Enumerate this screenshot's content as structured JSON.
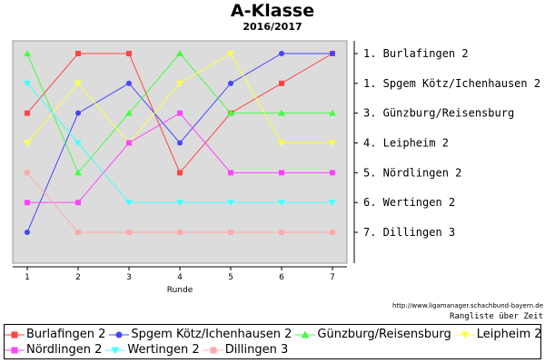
{
  "chart_data": {
    "type": "line",
    "title": "A-Klasse",
    "subtitle": "2016/2017",
    "xlabel": "Runde",
    "x": [
      1,
      2,
      3,
      4,
      5,
      6,
      7
    ],
    "ylim": [
      1,
      7
    ],
    "y_inverted": true,
    "grid": false,
    "legend_position": "bottom",
    "series": [
      {
        "name": "Burlafingen 2",
        "color": "#ff4444",
        "marker": "square",
        "values": [
          3,
          1,
          1,
          5,
          3,
          2,
          1
        ]
      },
      {
        "name": "Spgem Kötz/Ichenhausen 2",
        "color": "#4444ff",
        "marker": "circle",
        "values": [
          7,
          3,
          2,
          4,
          2,
          1,
          1
        ]
      },
      {
        "name": "Günzburg/Reisensburg",
        "color": "#44ff44",
        "marker": "triangle-up",
        "values": [
          1,
          5,
          3,
          1,
          3,
          3,
          3
        ]
      },
      {
        "name": "Leipheim 2",
        "color": "#ffff44",
        "marker": "triangle-down",
        "values": [
          4,
          2,
          4,
          2,
          1,
          4,
          4
        ]
      },
      {
        "name": "Nördlingen 2",
        "color": "#ff44ff",
        "marker": "square",
        "values": [
          6,
          6,
          4,
          3,
          5,
          5,
          5
        ]
      },
      {
        "name": "Wertingen 2",
        "color": "#44ffff",
        "marker": "triangle-down",
        "values": [
          2,
          4,
          6,
          6,
          6,
          6,
          6
        ]
      },
      {
        "name": "Dillingen 3",
        "color": "#ffaaaa",
        "marker": "square",
        "values": [
          5,
          7,
          7,
          7,
          7,
          7,
          7
        ]
      }
    ],
    "right_labels": [
      "1. Burlafingen 2",
      "1. Spgem Kötz/Ichenhausen 2",
      "3. Günzburg/Reisensburg",
      "4. Leipheim 2",
      "5. Nördlingen 2",
      "6. Wertingen 2",
      "7. Dillingen 3"
    ],
    "source": "http://www.ligamanager.schachbund-bayern.de",
    "caption": "Rangliste über Zeit"
  }
}
